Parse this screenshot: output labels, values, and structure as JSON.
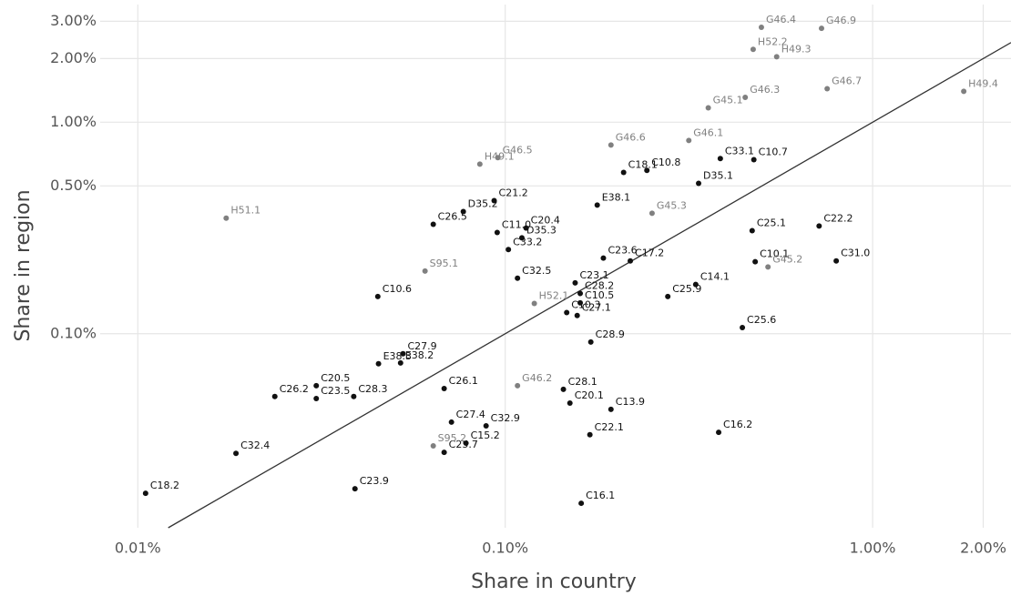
{
  "chart_data": {
    "type": "scatter",
    "x_label": "Share in country",
    "y_label": "Share in region",
    "xscale": "log",
    "yscale": "log",
    "grid": true,
    "identity_line": true,
    "xlim": [
      0.0079,
      2.38
    ],
    "ylim": [
      0.0121,
      3.6
    ],
    "xticks": [
      {
        "value": 0.01,
        "label": "0.01%"
      },
      {
        "value": 0.1,
        "label": "0.10%"
      },
      {
        "value": 1,
        "label": "1.00%"
      },
      {
        "value": 2,
        "label": "2.00%"
      }
    ],
    "yticks": [
      {
        "value": 0.1,
        "label": "0.10%"
      },
      {
        "value": 0.5,
        "label": "0.50%"
      },
      {
        "value": 1,
        "label": "1.00%"
      },
      {
        "value": 2,
        "label": "2.00%"
      },
      {
        "value": 3,
        "label": "3.00%"
      }
    ],
    "series": [
      {
        "color": "#111111",
        "labels": [
          "C10.8",
          "C33.1",
          "C10.7",
          "C18.1",
          "D35.1",
          "E38.1",
          "D35.2",
          "C21.2",
          "C26.5",
          "C11.0",
          "C20.4",
          "C33.2",
          "D35.3",
          "C23.6",
          "C32.5",
          "C23.1",
          "C17.2",
          "C25.1",
          "C22.2",
          "C10.1",
          "C31.0",
          "C14.1",
          "C25.9",
          "C28.2",
          "C10.5",
          "C10.3",
          "C27.1",
          "C10.6",
          "C25.6",
          "C28.9",
          "C27.9",
          "E38.3",
          "E38.2",
          "C20.5",
          "C26.2",
          "C23.5",
          "C28.3",
          "C26.1",
          "C28.1",
          "C20.1",
          "C13.9",
          "C27.4",
          "C32.9",
          "C15.2",
          "C25.7",
          "C22.1",
          "C16.2",
          "C32.4",
          "C18.2",
          "C23.9",
          "C16.1"
        ],
        "x": [
          0.243,
          0.385,
          0.475,
          0.21,
          0.336,
          0.178,
          0.0769,
          0.0933,
          0.0637,
          0.0951,
          0.114,
          0.102,
          0.111,
          0.185,
          0.108,
          0.155,
          0.219,
          0.47,
          0.715,
          0.479,
          0.796,
          0.33,
          0.277,
          0.16,
          0.16,
          0.147,
          0.157,
          0.045,
          0.442,
          0.171,
          0.0527,
          0.0452,
          0.0519,
          0.0306,
          0.0236,
          0.0306,
          0.0387,
          0.0682,
          0.144,
          0.15,
          0.194,
          0.0714,
          0.0887,
          0.0782,
          0.0682,
          0.17,
          0.381,
          0.0185,
          0.0105,
          0.039,
          0.161
        ],
        "values": [
          0.592,
          0.673,
          0.665,
          0.579,
          0.514,
          0.406,
          0.378,
          0.426,
          0.329,
          0.301,
          0.316,
          0.25,
          0.284,
          0.228,
          0.183,
          0.174,
          0.221,
          0.307,
          0.323,
          0.219,
          0.221,
          0.171,
          0.15,
          0.155,
          0.14,
          0.126,
          0.122,
          0.15,
          0.107,
          0.0914,
          0.0804,
          0.0721,
          0.0728,
          0.0568,
          0.0505,
          0.0494,
          0.0505,
          0.0551,
          0.0546,
          0.047,
          0.0439,
          0.0382,
          0.0367,
          0.0304,
          0.0275,
          0.0333,
          0.0342,
          0.0272,
          0.0176,
          0.0185,
          0.0158
        ]
      },
      {
        "color": "#808080",
        "labels": [
          "G46.4",
          "G46.9",
          "H52.2",
          "H49.3",
          "G46.3",
          "G46.7",
          "H49.4",
          "G45.1",
          "G46.1",
          "G46.6",
          "G46.5",
          "H49.1",
          "H51.1",
          "G45.3",
          "S95.1",
          "G45.2",
          "H52.1",
          "G46.2",
          "S95.2"
        ],
        "x": [
          0.498,
          0.726,
          0.473,
          0.548,
          0.45,
          0.752,
          1.77,
          0.357,
          0.316,
          0.194,
          0.0955,
          0.0853,
          0.0174,
          0.251,
          0.0605,
          0.519,
          0.12,
          0.108,
          0.0637
        ],
        "values": [
          2.81,
          2.78,
          2.21,
          2.04,
          1.31,
          1.44,
          1.4,
          1.17,
          0.82,
          0.78,
          0.68,
          0.634,
          0.352,
          0.371,
          0.198,
          0.207,
          0.139,
          0.0568,
          0.0295
        ]
      }
    ]
  }
}
